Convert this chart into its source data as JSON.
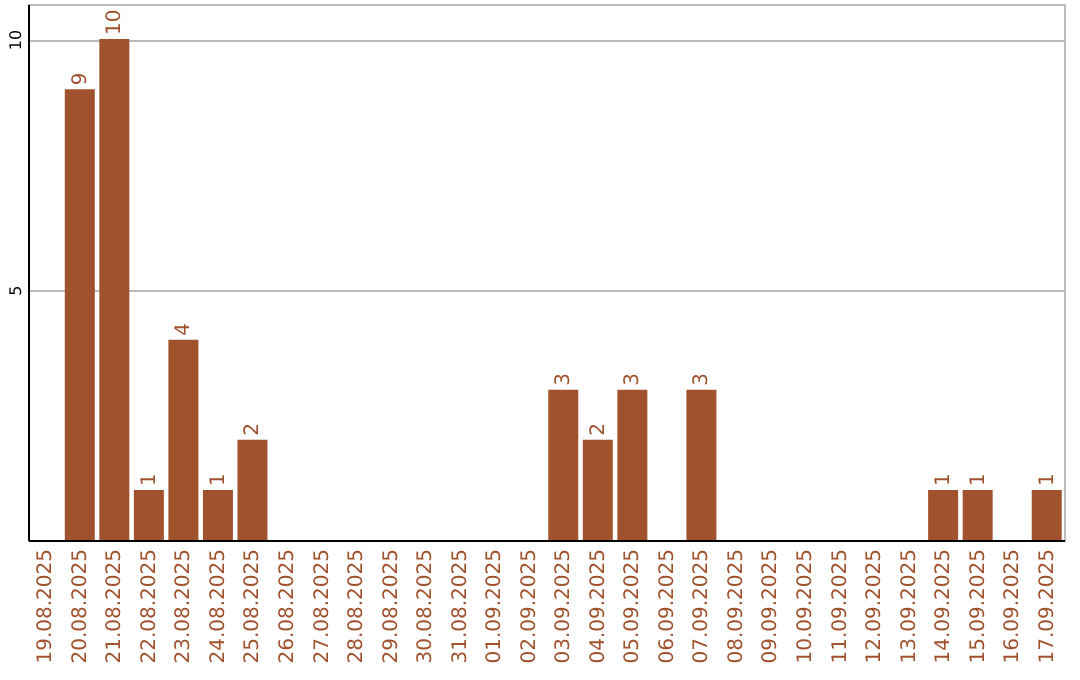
{
  "chart_data": {
    "type": "bar",
    "categories": [
      "19.08.2025",
      "20.08.2025",
      "21.08.2025",
      "22.08.2025",
      "23.08.2025",
      "24.08.2025",
      "25.08.2025",
      "26.08.2025",
      "27.08.2025",
      "28.08.2025",
      "29.08.2025",
      "30.08.2025",
      "31.08.2025",
      "01.09.2025",
      "02.09.2025",
      "03.09.2025",
      "04.09.2025",
      "05.09.2025",
      "06.09.2025",
      "07.09.2025",
      "08.09.2025",
      "09.09.2025",
      "10.09.2025",
      "11.09.2025",
      "12.09.2025",
      "13.09.2025",
      "14.09.2025",
      "15.09.2025",
      "16.09.2025",
      "17.09.2025"
    ],
    "values": [
      0,
      9,
      10,
      1,
      4,
      1,
      2,
      0,
      0,
      0,
      0,
      0,
      0,
      0,
      0,
      3,
      2,
      3,
      0,
      3,
      0,
      0,
      0,
      0,
      0,
      0,
      1,
      1,
      0,
      1
    ],
    "value_labels": [
      null,
      "9",
      "10",
      "1",
      "4",
      "1",
      "2",
      null,
      null,
      null,
      null,
      null,
      null,
      null,
      null,
      "3",
      "2",
      "3",
      null,
      "3",
      null,
      null,
      null,
      null,
      null,
      null,
      "1",
      "1",
      null,
      "1"
    ],
    "color": "#a0522d",
    "ylim": [
      0,
      10.7
    ],
    "yticks": [
      5,
      10
    ],
    "grid": "y"
  }
}
